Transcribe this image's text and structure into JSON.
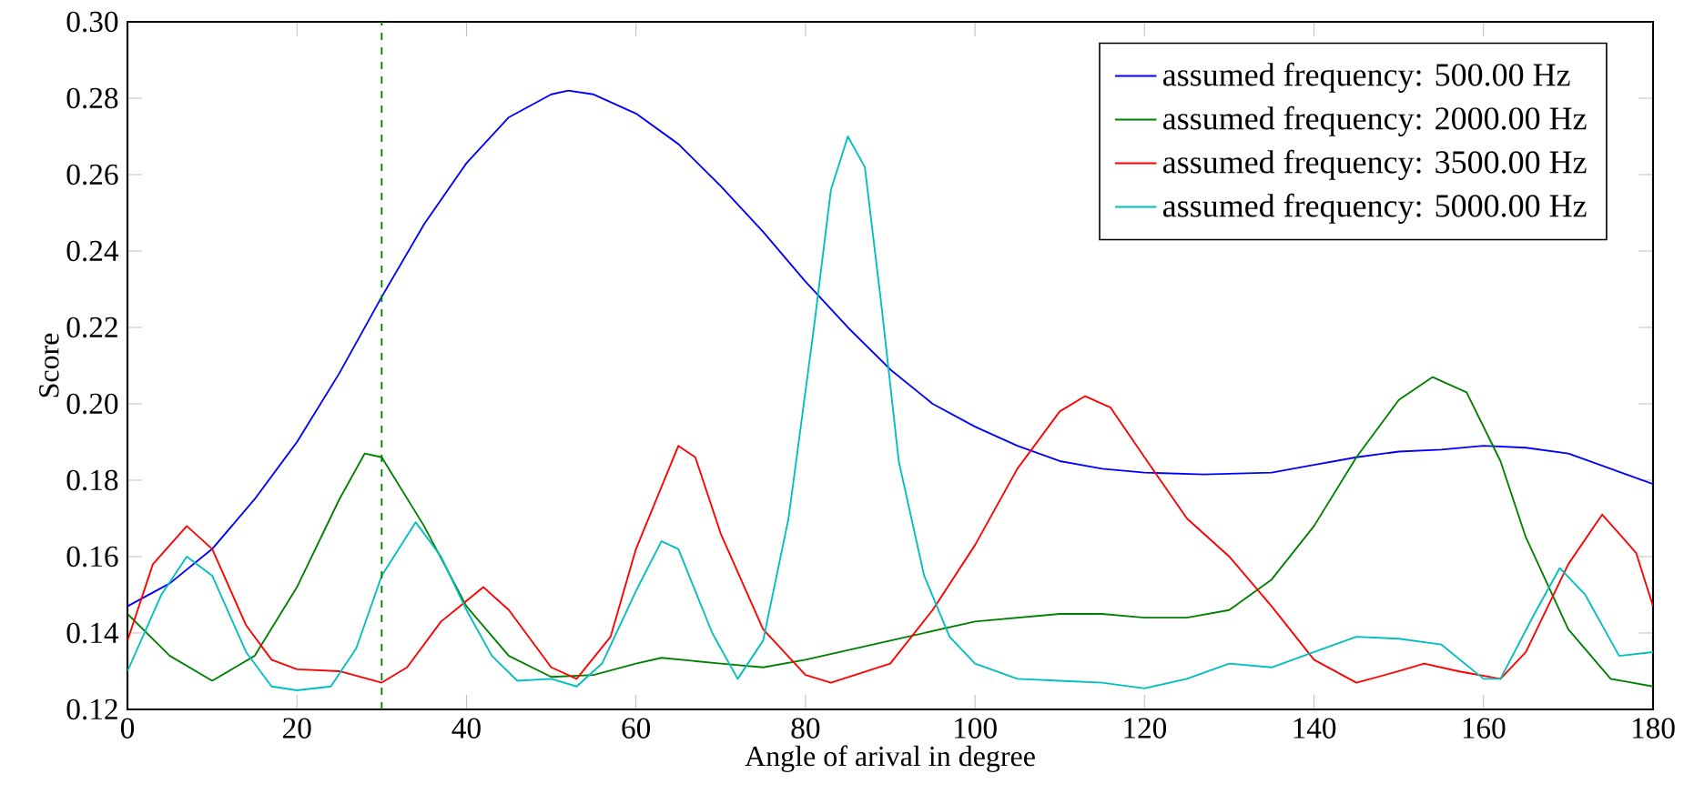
{
  "chart_data": {
    "type": "line",
    "xlabel": "Angle of arival in degree",
    "ylabel": "Score",
    "xlim": [
      0,
      180
    ],
    "ylim": [
      0.12,
      0.3
    ],
    "xticks": [
      0,
      20,
      40,
      60,
      80,
      100,
      120,
      140,
      160,
      180
    ],
    "yticks": [
      {
        "value": 0.12,
        "label": "0.12"
      },
      {
        "value": 0.14,
        "label": "0.14"
      },
      {
        "value": 0.16,
        "label": "0.16"
      },
      {
        "value": 0.18,
        "label": "0.18"
      },
      {
        "value": 0.2,
        "label": "0.20"
      },
      {
        "value": 0.22,
        "label": "0.22"
      },
      {
        "value": 0.24,
        "label": "0.24"
      },
      {
        "value": 0.26,
        "label": "0.26"
      },
      {
        "value": 0.28,
        "label": "0.28"
      },
      {
        "value": 0.3,
        "label": "0.30"
      }
    ],
    "grid": false,
    "legend": "top right",
    "marker": "none",
    "line_style": "solid",
    "ref_lines": [
      {
        "axis": "x",
        "value": 30,
        "color": "#008000",
        "line_style": "dashed"
      }
    ],
    "series": [
      {
        "name": "assumed frequency: 500.00 Hz",
        "color": "#0000ff",
        "x": [
          0,
          5,
          10,
          15,
          20,
          25,
          30,
          35,
          40,
          45,
          50,
          52,
          55,
          60,
          65,
          70,
          75,
          80,
          85,
          90,
          95,
          100,
          105,
          110,
          115,
          120,
          127,
          135,
          140,
          145,
          150,
          155,
          160,
          165,
          170,
          175,
          180
        ],
        "values": [
          0.147,
          0.153,
          0.162,
          0.175,
          0.19,
          0.208,
          0.228,
          0.247,
          0.263,
          0.275,
          0.281,
          0.282,
          0.281,
          0.276,
          0.268,
          0.257,
          0.245,
          0.232,
          0.22,
          0.209,
          0.2,
          0.194,
          0.189,
          0.185,
          0.183,
          0.182,
          0.1815,
          0.182,
          0.184,
          0.186,
          0.1875,
          0.188,
          0.189,
          0.1885,
          0.187,
          0.183,
          0.179
        ]
      },
      {
        "name": "assumed frequency: 2000.00 Hz",
        "color": "#008000",
        "x": [
          0,
          5,
          10,
          15,
          20,
          25,
          28,
          30,
          35,
          40,
          45,
          50,
          55,
          60,
          63,
          70,
          75,
          80,
          90,
          100,
          110,
          115,
          120,
          125,
          130,
          135,
          140,
          145,
          150,
          154,
          158,
          162,
          165,
          170,
          175,
          180
        ],
        "values": [
          0.145,
          0.134,
          0.1275,
          0.134,
          0.152,
          0.175,
          0.187,
          0.186,
          0.168,
          0.147,
          0.134,
          0.1285,
          0.129,
          0.132,
          0.1335,
          0.132,
          0.131,
          0.133,
          0.138,
          0.143,
          0.145,
          0.145,
          0.144,
          0.144,
          0.146,
          0.154,
          0.168,
          0.186,
          0.201,
          0.207,
          0.203,
          0.185,
          0.165,
          0.141,
          0.128,
          0.126
        ]
      },
      {
        "name": "assumed frequency: 3500.00 Hz",
        "color": "#ff0000",
        "x": [
          0,
          3,
          7,
          10,
          14,
          17,
          20,
          25,
          30,
          33,
          37,
          42,
          45,
          50,
          53,
          57,
          60,
          65,
          67,
          70,
          75,
          80,
          83,
          90,
          95,
          100,
          105,
          110,
          113,
          116,
          120,
          125,
          130,
          135,
          140,
          145,
          150,
          153,
          157,
          162,
          165,
          170,
          174,
          178,
          180
        ],
        "values": [
          0.138,
          0.158,
          0.168,
          0.162,
          0.142,
          0.133,
          0.1305,
          0.13,
          0.127,
          0.131,
          0.143,
          0.152,
          0.146,
          0.131,
          0.128,
          0.139,
          0.162,
          0.189,
          0.186,
          0.166,
          0.141,
          0.129,
          0.127,
          0.132,
          0.146,
          0.163,
          0.183,
          0.198,
          0.202,
          0.199,
          0.186,
          0.17,
          0.16,
          0.147,
          0.133,
          0.127,
          0.13,
          0.132,
          0.13,
          0.128,
          0.135,
          0.158,
          0.171,
          0.161,
          0.147
        ]
      },
      {
        "name": "assumed frequency: 5000.00 Hz",
        "color": "#00bfbf",
        "x": [
          0,
          4,
          7,
          10,
          14,
          17,
          20,
          24,
          27,
          30,
          34,
          37,
          40,
          43,
          46,
          50,
          53,
          56,
          60,
          63,
          65,
          69,
          72,
          75,
          78,
          81,
          83,
          85,
          87,
          89,
          91,
          94,
          97,
          100,
          105,
          110,
          115,
          120,
          125,
          130,
          135,
          140,
          145,
          150,
          155,
          160,
          162,
          166,
          169,
          172,
          176,
          180
        ],
        "values": [
          0.13,
          0.15,
          0.16,
          0.155,
          0.135,
          0.126,
          0.125,
          0.126,
          0.136,
          0.155,
          0.169,
          0.16,
          0.146,
          0.134,
          0.1275,
          0.128,
          0.126,
          0.132,
          0.151,
          0.164,
          0.162,
          0.14,
          0.128,
          0.138,
          0.17,
          0.22,
          0.256,
          0.27,
          0.262,
          0.225,
          0.185,
          0.155,
          0.139,
          0.132,
          0.128,
          0.1275,
          0.127,
          0.1255,
          0.128,
          0.132,
          0.131,
          0.135,
          0.139,
          0.1385,
          0.137,
          0.128,
          0.128,
          0.145,
          0.157,
          0.15,
          0.134,
          0.135
        ]
      }
    ]
  }
}
